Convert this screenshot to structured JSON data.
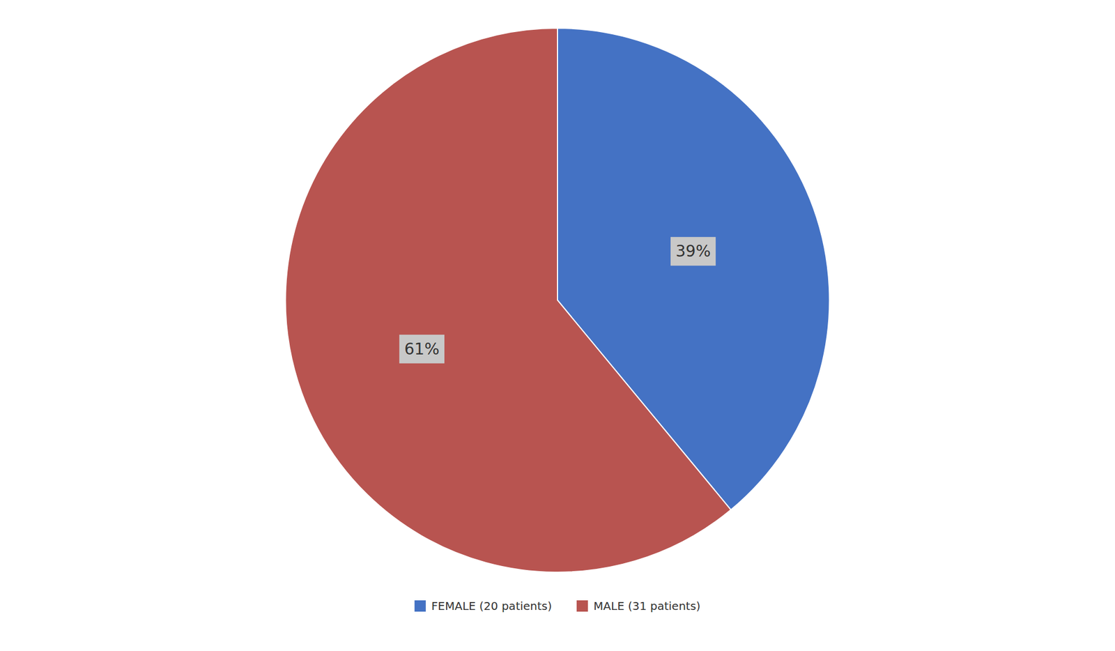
{
  "chart_data": {
    "type": "pie",
    "categories": [
      "FEMALE (20 patients)",
      "MALE (31 patients)"
    ],
    "values": [
      39,
      61
    ],
    "value_labels": [
      "39%",
      "61%"
    ],
    "colors": [
      "#4472C4",
      "#B85450"
    ],
    "data_labels": true,
    "legend": "bottom"
  }
}
